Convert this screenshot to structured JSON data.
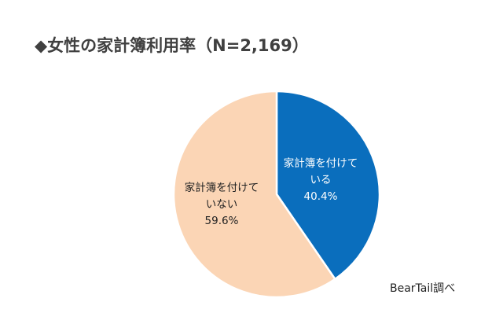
{
  "chart_data": {
    "type": "pie",
    "title": "◆女性の家計簿利用率（N=2,169）",
    "slices": [
      {
        "label_lines": [
          "家計簿を付けて",
          "いる",
          "40.4%"
        ],
        "value": 40.4,
        "color": "#0a6ebd",
        "text_color": "#ffffff"
      },
      {
        "label_lines": [
          "家計簿を付けて",
          "いない",
          "59.6%"
        ],
        "value": 59.6,
        "color": "#fbd5b5",
        "text_color": "#222222"
      }
    ],
    "start": "top, clockwise",
    "source": "BearTail調べ"
  }
}
